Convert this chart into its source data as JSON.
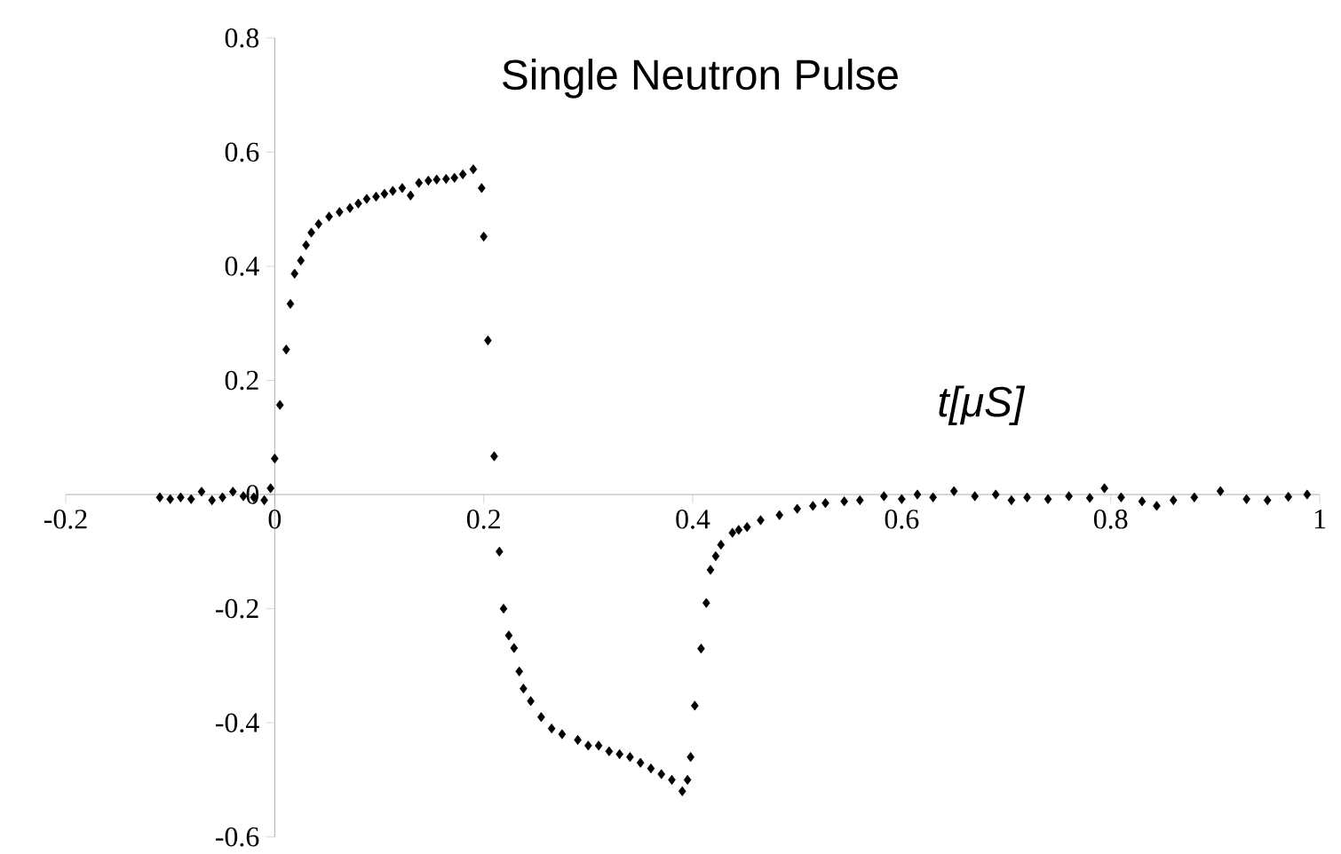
{
  "chart_data": {
    "type": "scatter",
    "title": "Single Neutron Pulse",
    "xlabel": "*t[μS]*",
    "x": [
      -0.11,
      -0.1,
      -0.09,
      -0.08,
      -0.07,
      -0.06,
      -0.05,
      -0.04,
      -0.03,
      -0.02,
      -0.01,
      -0.004,
      0.0,
      0.005,
      0.011,
      0.015,
      0.019,
      0.025,
      0.03,
      0.035,
      0.042,
      0.052,
      0.062,
      0.072,
      0.08,
      0.088,
      0.097,
      0.105,
      0.113,
      0.122,
      0.13,
      0.138,
      0.147,
      0.155,
      0.164,
      0.172,
      0.18,
      0.19,
      0.198,
      0.2,
      0.204,
      0.21,
      0.215,
      0.219,
      0.224,
      0.229,
      0.234,
      0.238,
      0.245,
      0.255,
      0.265,
      0.275,
      0.29,
      0.3,
      0.31,
      0.32,
      0.33,
      0.34,
      0.35,
      0.36,
      0.37,
      0.38,
      0.39,
      0.395,
      0.398,
      0.402,
      0.408,
      0.413,
      0.417,
      0.422,
      0.427,
      0.438,
      0.444,
      0.452,
      0.465,
      0.483,
      0.5,
      0.515,
      0.527,
      0.545,
      0.56,
      0.583,
      0.6,
      0.615,
      0.63,
      0.65,
      0.67,
      0.69,
      0.705,
      0.72,
      0.74,
      0.76,
      0.78,
      0.794,
      0.81,
      0.83,
      0.844,
      0.86,
      0.88,
      0.905,
      0.93,
      0.95,
      0.97,
      0.988
    ],
    "values": [
      -0.005,
      -0.008,
      -0.005,
      -0.008,
      0.005,
      -0.01,
      -0.005,
      0.005,
      -0.003,
      -0.005,
      -0.01,
      0.011,
      0.063,
      0.157,
      0.254,
      0.334,
      0.387,
      0.41,
      0.437,
      0.459,
      0.474,
      0.487,
      0.495,
      0.502,
      0.51,
      0.518,
      0.522,
      0.527,
      0.532,
      0.537,
      0.524,
      0.546,
      0.55,
      0.552,
      0.553,
      0.555,
      0.561,
      0.57,
      0.537,
      0.452,
      0.27,
      0.067,
      -0.1,
      -0.2,
      -0.247,
      -0.269,
      -0.31,
      -0.34,
      -0.362,
      -0.39,
      -0.41,
      -0.42,
      -0.43,
      -0.44,
      -0.44,
      -0.45,
      -0.455,
      -0.46,
      -0.47,
      -0.48,
      -0.49,
      -0.5,
      -0.52,
      -0.5,
      -0.46,
      -0.37,
      -0.27,
      -0.19,
      -0.132,
      -0.108,
      -0.088,
      -0.067,
      -0.062,
      -0.057,
      -0.045,
      -0.036,
      -0.025,
      -0.02,
      -0.015,
      -0.012,
      -0.01,
      -0.003,
      -0.008,
      0.0,
      -0.005,
      0.006,
      -0.003,
      0.0,
      -0.01,
      -0.005,
      -0.008,
      -0.003,
      -0.006,
      0.011,
      -0.005,
      -0.012,
      -0.02,
      -0.01,
      -0.005,
      0.006,
      -0.008,
      -0.01,
      -0.004,
      0.0
    ],
    "color": "#000000",
    "marker": "diamond",
    "xlim": [
      -0.2,
      1
    ],
    "ylim": [
      -0.6,
      0.8
    ],
    "xticks": [
      -0.2,
      0,
      0.2,
      0.4,
      0.6,
      0.8,
      1
    ],
    "yticks": [
      -0.6,
      -0.4,
      -0.2,
      0,
      0.2,
      0.4,
      0.6,
      0.8
    ]
  }
}
